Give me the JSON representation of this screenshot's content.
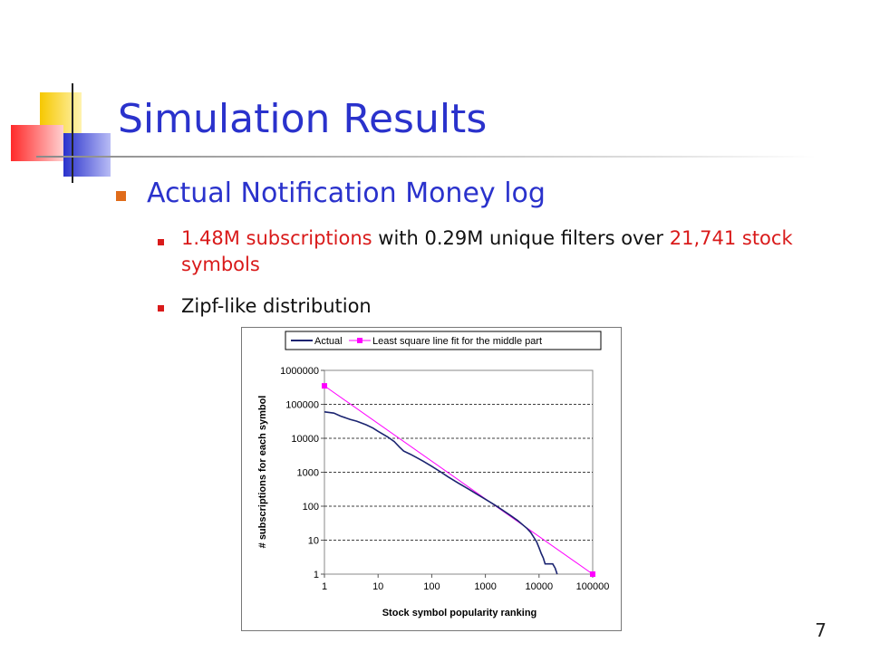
{
  "slide": {
    "title": "Simulation Results",
    "bullet1": "Actual Notification Money log",
    "sub1_part1": "1.48M subscriptions",
    "sub1_part2": " with 0.29M unique filters over ",
    "sub1_part3": "21,741 stock symbols",
    "sub2": "Zipf-like distribution",
    "page_number": "7"
  },
  "colors": {
    "title": "#2a32cc",
    "accent_red": "#d91a1a",
    "bullet": "#e06c1a",
    "actual_line": "#1a2370",
    "fit_line": "#ff00ff"
  },
  "chart_data": {
    "type": "line",
    "scale": "log-log",
    "xlabel": "Stock symbol popularity ranking",
    "ylabel": "# subscriptions for each symbol",
    "x_ticks": [
      "1",
      "10",
      "100",
      "1000",
      "10000",
      "100000"
    ],
    "y_ticks": [
      "1",
      "10",
      "100",
      "1000",
      "10000",
      "100000",
      "1000000"
    ],
    "xlim": [
      1,
      100000
    ],
    "ylim": [
      1,
      1000000
    ],
    "grid": "horizontal-dashed",
    "legend": "top",
    "series": [
      {
        "name": "Actual",
        "color": "#1a2370",
        "points": [
          [
            1,
            60000
          ],
          [
            1.5,
            55000
          ],
          [
            2,
            45000
          ],
          [
            3,
            36000
          ],
          [
            4,
            32000
          ],
          [
            6,
            25000
          ],
          [
            8,
            20000
          ],
          [
            10,
            16000
          ],
          [
            15,
            11000
          ],
          [
            20,
            8000
          ],
          [
            25,
            5500
          ],
          [
            30,
            4200
          ],
          [
            40,
            3400
          ],
          [
            50,
            2800
          ],
          [
            70,
            2100
          ],
          [
            100,
            1500
          ],
          [
            150,
            1000
          ],
          [
            200,
            740
          ],
          [
            300,
            500
          ],
          [
            500,
            310
          ],
          [
            700,
            225
          ],
          [
            1000,
            160
          ],
          [
            1500,
            108
          ],
          [
            2000,
            80
          ],
          [
            3000,
            52
          ],
          [
            4000,
            38
          ],
          [
            5000,
            28
          ],
          [
            6000,
            22
          ],
          [
            7000,
            17
          ],
          [
            8000,
            12
          ],
          [
            9000,
            9
          ],
          [
            10000,
            6
          ],
          [
            11000,
            4
          ],
          [
            12000,
            3
          ],
          [
            13000,
            2
          ],
          [
            15000,
            2
          ],
          [
            18000,
            2
          ],
          [
            20000,
            1.5
          ],
          [
            21741,
            1
          ]
        ]
      },
      {
        "name": "Least square line fit for the middle part",
        "color": "#ff00ff",
        "points": [
          [
            1,
            350000
          ],
          [
            100000,
            1
          ]
        ]
      }
    ]
  }
}
